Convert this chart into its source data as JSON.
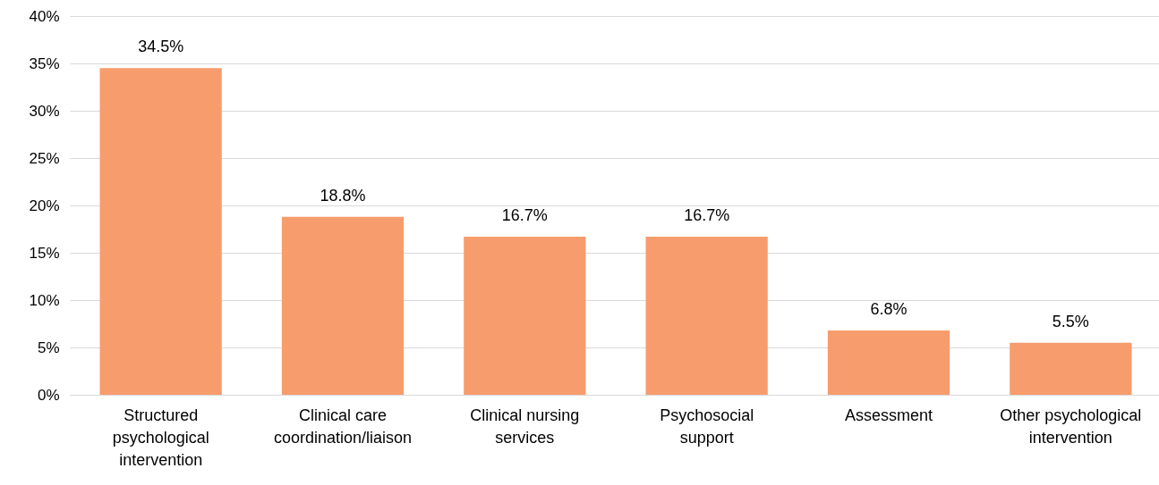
{
  "chart_data": {
    "type": "bar",
    "categories": [
      "Structured psychological intervention",
      "Clinical care coordination/liaison",
      "Clinical nursing services",
      "Psychosocial support",
      "Assessment",
      "Other psychological intervention"
    ],
    "values": [
      34.5,
      18.8,
      16.7,
      16.7,
      6.8,
      5.5
    ],
    "value_labels": [
      "34.5%",
      "18.8%",
      "16.7%",
      "16.7%",
      "6.8%",
      "5.5%"
    ],
    "color": "#f79c6c",
    "ylim": [
      0,
      40
    ],
    "yticks": [
      {
        "value": 0,
        "label": "0%"
      },
      {
        "value": 5,
        "label": "5%"
      },
      {
        "value": 10,
        "label": "10%"
      },
      {
        "value": 15,
        "label": "15%"
      },
      {
        "value": 20,
        "label": "20%"
      },
      {
        "value": 25,
        "label": "25%"
      },
      {
        "value": 30,
        "label": "30%"
      },
      {
        "value": 35,
        "label": "35%"
      },
      {
        "value": 40,
        "label": "40%"
      }
    ],
    "grid": "y"
  }
}
